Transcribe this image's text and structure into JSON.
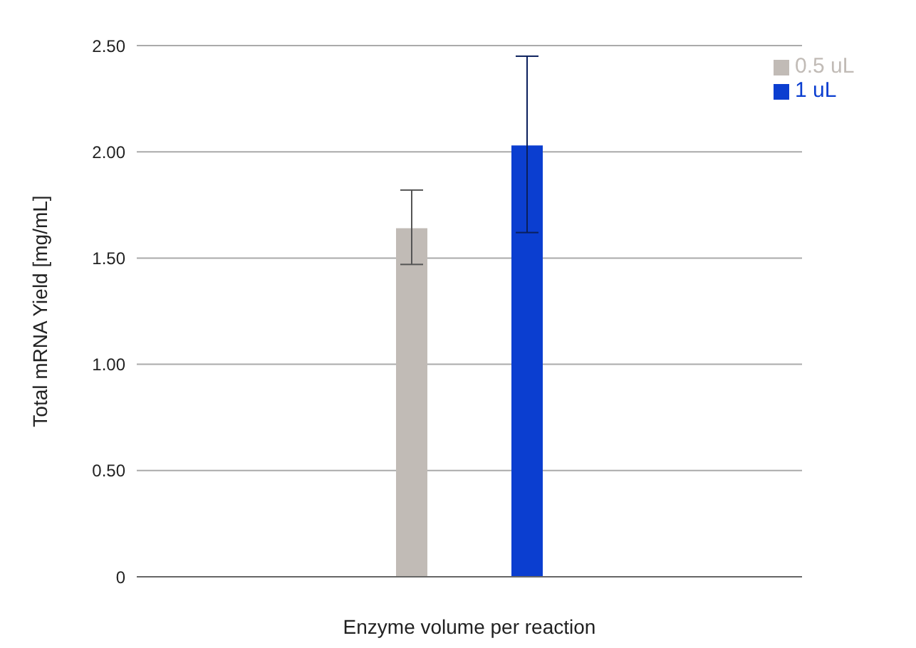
{
  "chart_data": {
    "type": "bar",
    "xlabel": "Enzyme volume per reaction",
    "ylabel": "Total mRNA Yield [mg/mL]",
    "categories": [
      null
    ],
    "series": [
      {
        "name": "0.5 uL",
        "color": "#c1bbb6",
        "values": [
          1.64
        ],
        "errors": [
          [
            1.47,
            1.82
          ]
        ]
      },
      {
        "name": "1 uL",
        "color": "#0b3ed0",
        "values": [
          2.03
        ],
        "errors": [
          [
            1.62,
            2.45
          ]
        ]
      }
    ],
    "ylim": [
      0,
      2.5
    ],
    "yticks": [
      0,
      {
        "value": 0.5,
        "label": "0.50"
      },
      {
        "value": 1,
        "label": "1.00"
      },
      {
        "value": 1.5,
        "label": "1.50"
      },
      {
        "value": 2,
        "label": "2.00"
      },
      {
        "value": 2.5,
        "label": "2.50"
      }
    ],
    "grid": "y",
    "legend": "top right"
  }
}
